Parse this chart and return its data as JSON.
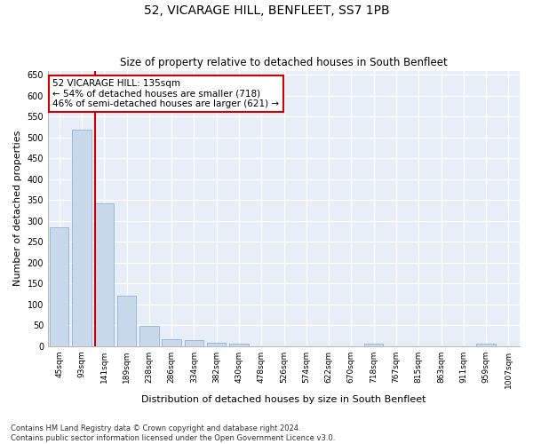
{
  "title": "52, VICARAGE HILL, BENFLEET, SS7 1PB",
  "subtitle": "Size of property relative to detached houses in South Benfleet",
  "xlabel": "Distribution of detached houses by size in South Benfleet",
  "ylabel": "Number of detached properties",
  "footnote": "Contains HM Land Registry data © Crown copyright and database right 2024.\nContains public sector information licensed under the Open Government Licence v3.0.",
  "bar_labels": [
    "45sqm",
    "93sqm",
    "141sqm",
    "189sqm",
    "238sqm",
    "286sqm",
    "334sqm",
    "382sqm",
    "430sqm",
    "478sqm",
    "526sqm",
    "574sqm",
    "622sqm",
    "670sqm",
    "718sqm",
    "767sqm",
    "815sqm",
    "863sqm",
    "911sqm",
    "959sqm",
    "1007sqm"
  ],
  "bar_values": [
    285,
    518,
    342,
    120,
    48,
    16,
    14,
    8,
    5,
    0,
    0,
    0,
    0,
    0,
    5,
    0,
    0,
    0,
    0,
    5,
    0
  ],
  "bar_color": "#c9d9ec",
  "bar_edge_color": "#8fb4d4",
  "vline_index": 1.575,
  "annotation_text": "52 VICARAGE HILL: 135sqm\n← 54% of detached houses are smaller (718)\n46% of semi-detached houses are larger (621) →",
  "annotation_box_color": "#ffffff",
  "annotation_border_color": "#cc0000",
  "vline_color": "#cc0000",
  "ylim": [
    0,
    660
  ],
  "yticks": [
    0,
    50,
    100,
    150,
    200,
    250,
    300,
    350,
    400,
    450,
    500,
    550,
    600,
    650
  ],
  "background_color": "#e8eef7",
  "title_fontsize": 10,
  "subtitle_fontsize": 8.5,
  "xlabel_fontsize": 8,
  "ylabel_fontsize": 8,
  "tick_fontsize": 6.5,
  "annot_fontsize": 7.5
}
